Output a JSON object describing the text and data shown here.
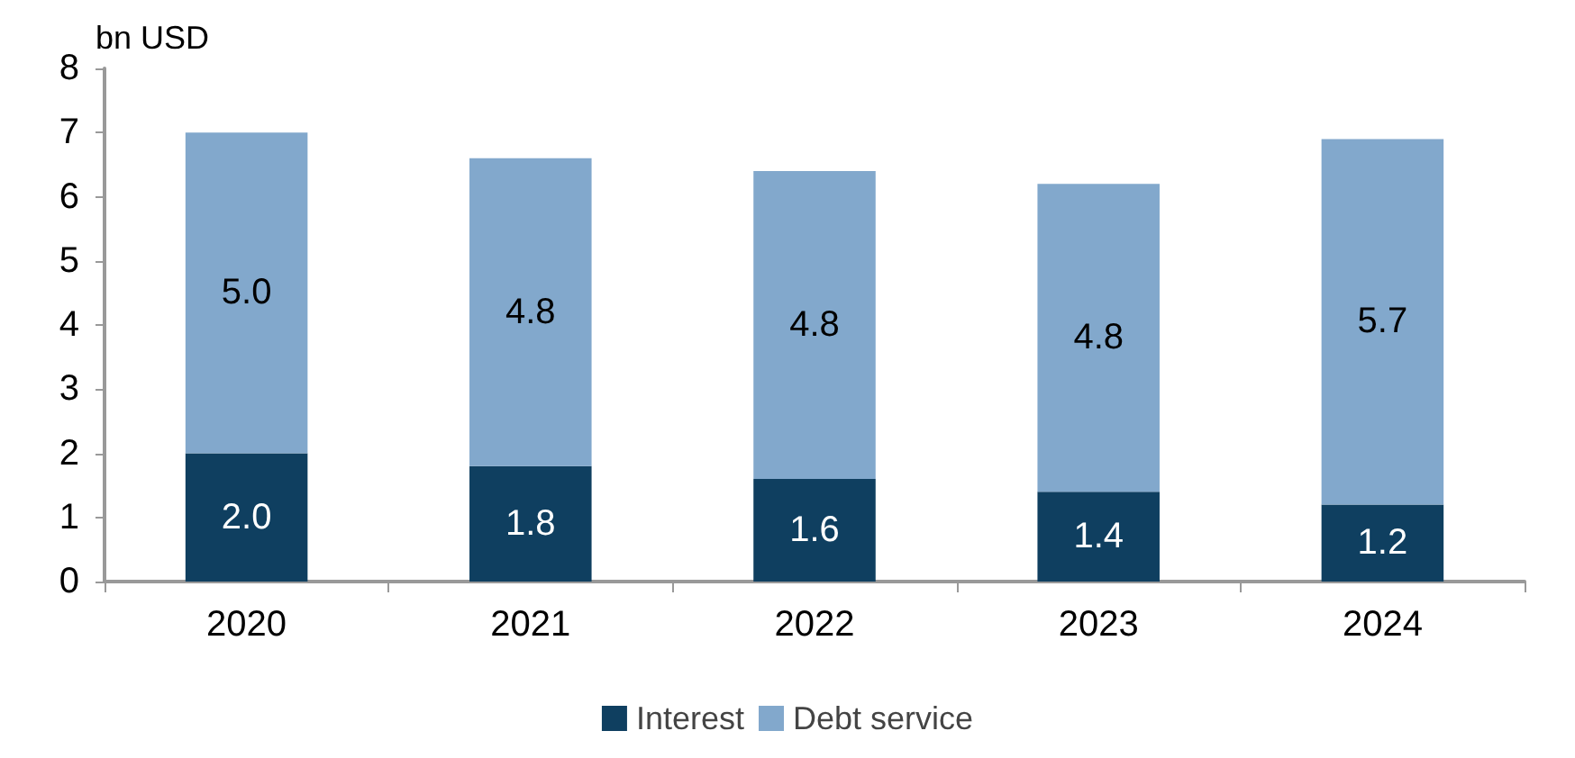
{
  "chart_data": {
    "type": "bar",
    "stacked": true,
    "ylabel": "bn USD",
    "categories": [
      "2020",
      "2021",
      "2022",
      "2023",
      "2024"
    ],
    "series": [
      {
        "name": "Interest",
        "color": "#0f3f60",
        "values": [
          2.0,
          1.8,
          1.6,
          1.4,
          1.2
        ],
        "value_labels": [
          "2.0",
          "1.8",
          "1.6",
          "1.4",
          "1.2"
        ]
      },
      {
        "name": "Debt service",
        "color": "#82a8cc",
        "values": [
          5.0,
          4.8,
          4.8,
          4.8,
          5.7
        ],
        "value_labels": [
          "5.0",
          "4.8",
          "4.8",
          "4.8",
          "5.7"
        ]
      }
    ],
    "ylim": [
      0,
      8
    ],
    "yticks": [
      0,
      1,
      2,
      3,
      4,
      5,
      6,
      7,
      8
    ],
    "grid": false,
    "legend": "bottom"
  }
}
